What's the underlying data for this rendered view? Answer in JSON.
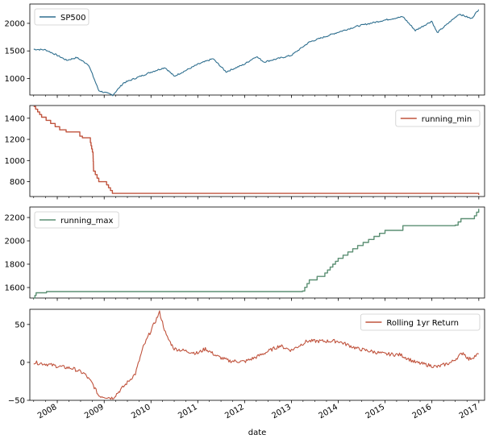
{
  "chart_data": [
    {
      "type": "line",
      "series": [
        {
          "name": "SP500",
          "color": "#2f6f8f"
        }
      ],
      "points": [
        [
          "2007-07-01",
          1530
        ],
        [
          "2007-10-01",
          1520
        ],
        [
          "2008-01-01",
          1420
        ],
        [
          "2008-03-15",
          1330
        ],
        [
          "2008-06-01",
          1380
        ],
        [
          "2008-09-01",
          1250
        ],
        [
          "2008-11-20",
          780
        ],
        [
          "2009-03-09",
          700
        ],
        [
          "2009-06-01",
          920
        ],
        [
          "2009-12-31",
          1115
        ],
        [
          "2010-04-20",
          1200
        ],
        [
          "2010-07-01",
          1040
        ],
        [
          "2010-12-31",
          1255
        ],
        [
          "2011-04-29",
          1360
        ],
        [
          "2011-08-10",
          1120
        ],
        [
          "2011-12-31",
          1260
        ],
        [
          "2012-04-01",
          1400
        ],
        [
          "2012-06-01",
          1300
        ],
        [
          "2012-12-31",
          1420
        ],
        [
          "2013-05-20",
          1660
        ],
        [
          "2013-12-31",
          1840
        ],
        [
          "2014-06-01",
          1950
        ],
        [
          "2014-12-31",
          2060
        ],
        [
          "2015-05-20",
          2120
        ],
        [
          "2015-08-25",
          1870
        ],
        [
          "2015-12-31",
          2040
        ],
        [
          "2016-02-11",
          1830
        ],
        [
          "2016-08-01",
          2170
        ],
        [
          "2016-11-04",
          2085
        ],
        [
          "2016-12-31",
          2250
        ]
      ],
      "ylim": [
        700,
        2350
      ],
      "yticks": [
        "1000",
        "1500",
        "2000"
      ],
      "legend": "top-left"
    },
    {
      "type": "line",
      "series": [
        {
          "name": "running_min",
          "color": "#c0533d"
        }
      ],
      "points": [
        [
          "2007-07-01",
          1510
        ],
        [
          "2007-08-01",
          1460
        ],
        [
          "2007-09-01",
          1410
        ],
        [
          "2008-01-20",
          1290
        ],
        [
          "2008-03-10",
          1270
        ],
        [
          "2008-06-25",
          1230
        ],
        [
          "2008-07-15",
          1215
        ],
        [
          "2008-09-15",
          1170
        ],
        [
          "2008-10-06",
          1050
        ],
        [
          "2008-10-10",
          900
        ],
        [
          "2008-11-20",
          800
        ],
        [
          "2009-01-20",
          770
        ],
        [
          "2009-03-06",
          690
        ],
        [
          "2016-12-31",
          676
        ]
      ],
      "ylim": [
        660,
        1520
      ],
      "yticks": [
        "800",
        "1000",
        "1200",
        "1400"
      ],
      "legend": "top-right"
    },
    {
      "type": "line",
      "series": [
        {
          "name": "running_max",
          "color": "#5b8f73"
        }
      ],
      "points": [
        [
          "2007-07-01",
          1510
        ],
        [
          "2007-07-20",
          1555
        ],
        [
          "2007-10-09",
          1565
        ],
        [
          "2013-03-28",
          1570
        ],
        [
          "2013-05-20",
          1665
        ],
        [
          "2013-09-18",
          1725
        ],
        [
          "2013-12-31",
          1850
        ],
        [
          "2014-06-01",
          1960
        ],
        [
          "2014-12-31",
          2090
        ],
        [
          "2015-05-20",
          2130
        ],
        [
          "2016-07-01",
          2135
        ],
        [
          "2016-08-15",
          2190
        ],
        [
          "2016-11-28",
          2215
        ],
        [
          "2016-12-31",
          2275
        ]
      ],
      "ylim": [
        1510,
        2290
      ],
      "yticks": [
        "1600",
        "1800",
        "2000",
        "2200"
      ],
      "legend": "top-left"
    },
    {
      "type": "line",
      "series": [
        {
          "name": "Rolling 1yr Return",
          "color": "#c0533d"
        }
      ],
      "points": [
        [
          "2007-07-01",
          0
        ],
        [
          "2007-10-01",
          -2
        ],
        [
          "2008-01-01",
          -5
        ],
        [
          "2008-05-01",
          -8
        ],
        [
          "2008-08-01",
          -15
        ],
        [
          "2008-10-01",
          -28
        ],
        [
          "2008-11-20",
          -44
        ],
        [
          "2009-03-09",
          -47
        ],
        [
          "2009-06-01",
          -32
        ],
        [
          "2009-09-01",
          -15
        ],
        [
          "2009-11-01",
          20
        ],
        [
          "2010-03-09",
          66
        ],
        [
          "2010-05-01",
          35
        ],
        [
          "2010-07-01",
          18
        ],
        [
          "2010-12-31",
          12
        ],
        [
          "2011-03-01",
          18
        ],
        [
          "2011-06-01",
          8
        ],
        [
          "2011-09-01",
          2
        ],
        [
          "2012-01-01",
          1
        ],
        [
          "2012-04-01",
          7
        ],
        [
          "2012-10-01",
          22
        ],
        [
          "2012-12-31",
          16
        ],
        [
          "2013-05-01",
          28
        ],
        [
          "2013-12-31",
          28
        ],
        [
          "2014-06-01",
          18
        ],
        [
          "2014-12-31",
          11
        ],
        [
          "2015-05-01",
          10
        ],
        [
          "2015-08-25",
          0
        ],
        [
          "2016-02-11",
          -6
        ],
        [
          "2016-06-01",
          0
        ],
        [
          "2016-09-01",
          13
        ],
        [
          "2016-10-15",
          4
        ],
        [
          "2016-12-31",
          11
        ]
      ],
      "ylim": [
        -50,
        70
      ],
      "yticks": [
        "−50",
        "0",
        "50"
      ],
      "legend": "top-right"
    }
  ],
  "x_axis": {
    "xlabel": "date",
    "range": [
      "2007-06-01",
      "2017-02-15"
    ],
    "ticks": [
      {
        "label": "2008",
        "date": "2008-01-01"
      },
      {
        "label": "2009",
        "date": "2009-01-01"
      },
      {
        "label": "2010",
        "date": "2010-01-01"
      },
      {
        "label": "2011",
        "date": "2011-01-01"
      },
      {
        "label": "2012",
        "date": "2012-01-01"
      },
      {
        "label": "2013",
        "date": "2013-01-01"
      },
      {
        "label": "2014",
        "date": "2014-01-01"
      },
      {
        "label": "2015",
        "date": "2015-01-01"
      },
      {
        "label": "2016",
        "date": "2016-01-01"
      },
      {
        "label": "2017",
        "date": "2017-01-01"
      }
    ]
  }
}
